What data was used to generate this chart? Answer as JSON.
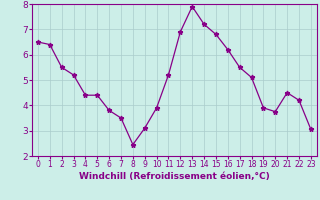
{
  "x": [
    0,
    1,
    2,
    3,
    4,
    5,
    6,
    7,
    8,
    9,
    10,
    11,
    12,
    13,
    14,
    15,
    16,
    17,
    18,
    19,
    20,
    21,
    22,
    23
  ],
  "y": [
    6.5,
    6.4,
    5.5,
    5.2,
    4.4,
    4.4,
    3.8,
    3.5,
    2.45,
    3.1,
    3.9,
    5.2,
    6.9,
    7.9,
    7.2,
    6.8,
    6.2,
    5.5,
    5.1,
    3.9,
    3.75,
    4.5,
    4.2,
    3.05
  ],
  "line_color": "#880088",
  "marker": "*",
  "marker_size": 3.5,
  "bg_color": "#cceee8",
  "grid_color": "#aacccc",
  "xlabel": "Windchill (Refroidissement éolien,°C)",
  "xlabel_color": "#880088",
  "tick_color": "#880088",
  "spine_color": "#880088",
  "ylim": [
    2,
    8
  ],
  "xlim_min": -0.5,
  "xlim_max": 23.5,
  "yticks": [
    2,
    3,
    4,
    5,
    6,
    7,
    8
  ],
  "xticks": [
    0,
    1,
    2,
    3,
    4,
    5,
    6,
    7,
    8,
    9,
    10,
    11,
    12,
    13,
    14,
    15,
    16,
    17,
    18,
    19,
    20,
    21,
    22,
    23
  ],
  "xlabel_fontsize": 6.5,
  "tick_fontsize_x": 5.5,
  "tick_fontsize_y": 6.5
}
